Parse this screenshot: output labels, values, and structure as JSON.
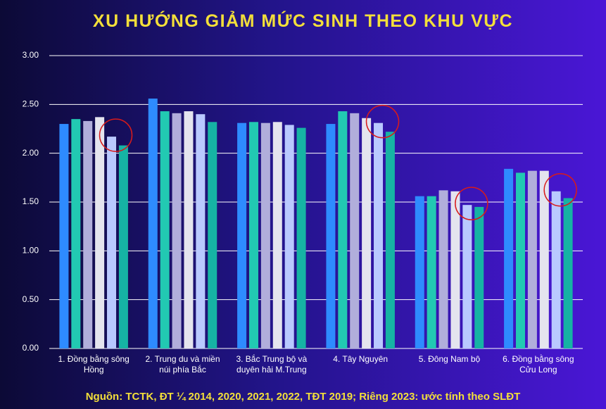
{
  "chart_data": {
    "type": "bar",
    "title": "XU HƯỚNG GIẢM MỨC SINH THEO KHU VỰC",
    "source": "Nguồn: TCTK, ĐT ¼ 2014, 2020, 2021, 2022, TĐT 2019; Riêng 2023: ước tính theo SLĐT",
    "categories": [
      "1. Đồng bằng sông Hồng",
      "2. Trung du và miền núi phía Bắc",
      "3. Bắc Trung bộ và duyên hải M.Trung",
      "4. Tây Nguyên",
      "5. Đông Nam bộ",
      "6. Đồng bằng sông Cửu Long"
    ],
    "series": [
      {
        "color": "#2e8bff",
        "values": [
          2.3,
          2.56,
          2.31,
          2.3,
          1.56,
          1.84
        ]
      },
      {
        "color": "#22c9b2",
        "values": [
          2.35,
          2.43,
          2.32,
          2.43,
          1.56,
          1.8
        ]
      },
      {
        "color": "#b1aedb",
        "values": [
          2.33,
          2.41,
          2.31,
          2.41,
          1.62,
          1.82
        ]
      },
      {
        "color": "#e4e4ee",
        "values": [
          2.37,
          2.43,
          2.32,
          2.36,
          1.61,
          1.82
        ]
      },
      {
        "color": "#b9c9ff",
        "values": [
          2.17,
          2.4,
          2.29,
          2.31,
          1.47,
          1.61
        ]
      },
      {
        "color": "#16b3a4",
        "values": [
          2.08,
          2.32,
          2.26,
          2.22,
          1.45,
          1.54
        ]
      }
    ],
    "ylim": [
      0,
      3
    ],
    "yticks": [
      {
        "value": 0,
        "label": "0.00"
      },
      {
        "value": 0.5,
        "label": "0.50"
      },
      {
        "value": 1,
        "label": "1.00"
      },
      {
        "value": 1.5,
        "label": "1.50"
      },
      {
        "value": 2,
        "label": "2.00"
      },
      {
        "value": 2.5,
        "label": "2.50"
      },
      {
        "value": 3,
        "label": "3.00"
      }
    ],
    "grid": true
  }
}
